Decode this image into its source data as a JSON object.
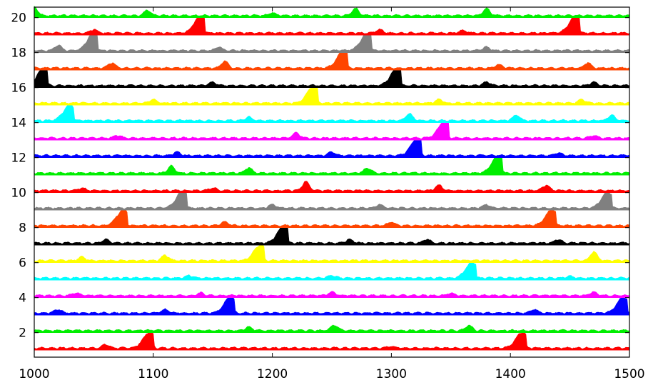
{
  "chart_data": {
    "type": "area",
    "title": "",
    "xlabel": "",
    "ylabel": "",
    "xlim": [
      1000,
      1500
    ],
    "ylim": [
      0.6,
      20.6
    ],
    "grid": false,
    "x_ticks": [
      1000,
      1100,
      1200,
      1300,
      1400,
      1500
    ],
    "y_ticks": [
      2,
      4,
      6,
      8,
      10,
      12,
      14,
      16,
      18,
      20
    ],
    "x_tick_labels": [
      "1000",
      "1100",
      "1200",
      "1300",
      "1400",
      "1500"
    ],
    "y_tick_labels": [
      "2",
      "4",
      "6",
      "8",
      "10",
      "12",
      "14",
      "16",
      "18",
      "20"
    ],
    "series": [
      {
        "baseline": 1,
        "color": "#ff0000",
        "peaks": [
          [
            1097,
            0.9
          ],
          [
            1410,
            0.9
          ],
          [
            1060,
            0.2
          ],
          [
            1300,
            0.1
          ]
        ]
      },
      {
        "baseline": 2,
        "color": "#00ee00",
        "peaks": [
          [
            1252,
            0.3
          ],
          [
            1365,
            0.3
          ],
          [
            1180,
            0.2
          ]
        ]
      },
      {
        "baseline": 3,
        "color": "#0000ff",
        "peaks": [
          [
            1165,
            0.9
          ],
          [
            1495,
            0.9
          ],
          [
            1020,
            0.2
          ],
          [
            1110,
            0.2
          ],
          [
            1420,
            0.2
          ]
        ]
      },
      {
        "baseline": 4,
        "color": "#ff00ff",
        "peaks": [
          [
            1035,
            0.15
          ],
          [
            1140,
            0.15
          ],
          [
            1250,
            0.2
          ],
          [
            1350,
            0.15
          ],
          [
            1470,
            0.2
          ]
        ]
      },
      {
        "baseline": 5,
        "color": "#00ffff",
        "peaks": [
          [
            1368,
            0.9
          ],
          [
            1130,
            0.15
          ],
          [
            1250,
            0.15
          ],
          [
            1450,
            0.1
          ]
        ]
      },
      {
        "baseline": 6,
        "color": "#ffff00",
        "peaks": [
          [
            1190,
            0.9
          ],
          [
            1470,
            0.5
          ],
          [
            1110,
            0.3
          ],
          [
            1040,
            0.2
          ]
        ]
      },
      {
        "baseline": 7,
        "color": "#000000",
        "peaks": [
          [
            1210,
            1.0
          ],
          [
            1060,
            0.2
          ],
          [
            1265,
            0.2
          ],
          [
            1330,
            0.2
          ],
          [
            1440,
            0.2
          ]
        ]
      },
      {
        "baseline": 8,
        "color": "#ff4500",
        "peaks": [
          [
            1075,
            0.9
          ],
          [
            1435,
            0.9
          ],
          [
            1160,
            0.2
          ],
          [
            1300,
            0.2
          ]
        ]
      },
      {
        "baseline": 9,
        "color": "#808080",
        "peaks": [
          [
            1125,
            1.0
          ],
          [
            1482,
            0.9
          ],
          [
            1200,
            0.2
          ],
          [
            1290,
            0.2
          ],
          [
            1380,
            0.2
          ]
        ]
      },
      {
        "baseline": 10,
        "color": "#ff0000",
        "peaks": [
          [
            1228,
            0.5
          ],
          [
            1430,
            0.3
          ],
          [
            1040,
            0.15
          ],
          [
            1340,
            0.3
          ],
          [
            1150,
            0.15
          ]
        ]
      },
      {
        "baseline": 11,
        "color": "#00ee00",
        "peaks": [
          [
            1390,
            1.0
          ],
          [
            1115,
            0.4
          ],
          [
            1180,
            0.3
          ],
          [
            1280,
            0.3
          ]
        ]
      },
      {
        "baseline": 12,
        "color": "#0000ff",
        "peaks": [
          [
            1322,
            1.0
          ],
          [
            1120,
            0.2
          ],
          [
            1250,
            0.2
          ],
          [
            1440,
            0.15
          ]
        ]
      },
      {
        "baseline": 13,
        "color": "#ff00ff",
        "peaks": [
          [
            1345,
            1.0
          ],
          [
            1220,
            0.3
          ],
          [
            1070,
            0.15
          ],
          [
            1470,
            0.15
          ]
        ]
      },
      {
        "baseline": 14,
        "color": "#00ffff",
        "peaks": [
          [
            1030,
            0.9
          ],
          [
            1315,
            0.4
          ],
          [
            1405,
            0.3
          ],
          [
            1485,
            0.3
          ],
          [
            1180,
            0.2
          ]
        ]
      },
      {
        "baseline": 15,
        "color": "#ffff00",
        "peaks": [
          [
            1235,
            1.0
          ],
          [
            1100,
            0.2
          ],
          [
            1340,
            0.2
          ],
          [
            1460,
            0.2
          ]
        ]
      },
      {
        "baseline": 16,
        "color": "#000000",
        "peaks": [
          [
            1008,
            1.0
          ],
          [
            1305,
            1.0
          ],
          [
            1150,
            0.2
          ],
          [
            1380,
            0.2
          ],
          [
            1470,
            0.2
          ]
        ]
      },
      {
        "baseline": 17,
        "color": "#ff4500",
        "peaks": [
          [
            1260,
            1.0
          ],
          [
            1160,
            0.4
          ],
          [
            1065,
            0.3
          ],
          [
            1465,
            0.3
          ],
          [
            1390,
            0.2
          ]
        ]
      },
      {
        "baseline": 18,
        "color": "#808080",
        "peaks": [
          [
            1050,
            1.0
          ],
          [
            1280,
            1.0
          ],
          [
            1020,
            0.3
          ],
          [
            1155,
            0.2
          ],
          [
            1380,
            0.2
          ]
        ]
      },
      {
        "baseline": 19,
        "color": "#ff0000",
        "peaks": [
          [
            1140,
            1.0
          ],
          [
            1455,
            1.0
          ],
          [
            1050,
            0.2
          ],
          [
            1290,
            0.2
          ],
          [
            1360,
            0.15
          ]
        ]
      },
      {
        "baseline": 20,
        "color": "#00ee00",
        "peaks": [
          [
            1095,
            0.3
          ],
          [
            1270,
            0.4
          ],
          [
            1380,
            0.4
          ],
          [
            1000,
            0.5
          ],
          [
            1200,
            0.15
          ]
        ]
      }
    ]
  }
}
